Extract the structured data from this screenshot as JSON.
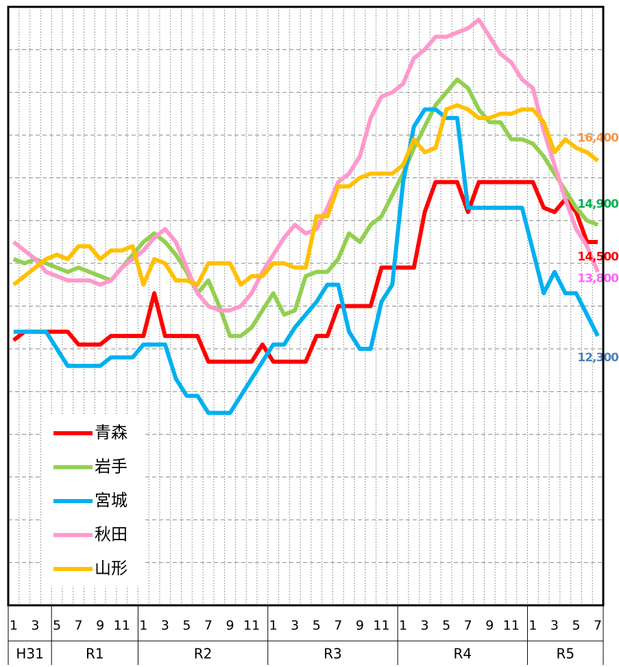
{
  "chart_data": {
    "type": "line",
    "categories": [
      "1",
      null,
      "3",
      null,
      "5",
      null,
      "7",
      null,
      "9",
      null,
      "11",
      null,
      "1",
      null,
      "3",
      null,
      "5",
      null,
      "7",
      null,
      "9",
      null,
      "11",
      null,
      "1",
      null,
      "3",
      null,
      "5",
      null,
      "7",
      null,
      "9",
      null,
      "11",
      null,
      "1",
      null,
      "3",
      null,
      "5",
      null,
      "7",
      null,
      "9",
      null,
      "11",
      null,
      "1",
      null,
      "3",
      null,
      "5",
      null,
      "7"
    ],
    "periods": [
      {
        "label": "H31",
        "months": 4
      },
      {
        "label": "R1",
        "months": 8
      },
      {
        "label": "R2",
        "months": 12
      },
      {
        "label": "R3",
        "months": 12
      },
      {
        "label": "R4",
        "months": 12
      },
      {
        "label": "R5",
        "months": 7
      }
    ],
    "ylim": [
      6000,
      20000
    ],
    "yticks": [
      7000,
      8000,
      9000,
      10000,
      11000,
      12000,
      13000,
      14000,
      15000,
      16000,
      17000,
      18000,
      19000
    ],
    "grid": true,
    "legend": "lower left",
    "series": [
      {
        "name": "青森",
        "color": "#ff0000",
        "label_color": "#ff0000",
        "values": [
          12200,
          12400,
          12400,
          12400,
          12400,
          12400,
          12100,
          12100,
          12100,
          12300,
          12300,
          12300,
          12300,
          13300,
          12300,
          12300,
          12300,
          12300,
          11700,
          11700,
          11700,
          11700,
          11700,
          12100,
          11700,
          11700,
          11700,
          11700,
          12300,
          12300,
          13000,
          13000,
          13000,
          13000,
          13900,
          13900,
          13900,
          13900,
          15200,
          15900,
          15900,
          15900,
          15200,
          15900,
          15900,
          15900,
          15900,
          15900,
          15900,
          15300,
          15200,
          15500,
          15200,
          14500,
          14500
        ],
        "value_labels": [
          null,
          null,
          null,
          null,
          null,
          null,
          null,
          null,
          null,
          null,
          null,
          null,
          null,
          null,
          null,
          null,
          null,
          null,
          null,
          null,
          null,
          null,
          null,
          null,
          null,
          null,
          null,
          null,
          null,
          null,
          null,
          null,
          null,
          null,
          null,
          null,
          null,
          null,
          null,
          null,
          null,
          null,
          null,
          null,
          null,
          null,
          null,
          null,
          null,
          null,
          null,
          null,
          null,
          null,
          "14,500"
        ]
      },
      {
        "name": "岩手",
        "color": "#92d050",
        "label_color": "#00b050",
        "values": [
          14100,
          14000,
          14100,
          14000,
          13900,
          13800,
          13900,
          13800,
          13700,
          13600,
          13900,
          14200,
          14500,
          14700,
          14500,
          14200,
          13800,
          13300,
          13600,
          13000,
          12300,
          12300,
          12500,
          12900,
          13300,
          12800,
          12900,
          13700,
          13800,
          13800,
          14100,
          14700,
          14500,
          14900,
          15100,
          15600,
          16100,
          16700,
          17200,
          17700,
          18000,
          18300,
          18100,
          17600,
          17300,
          17300,
          16900,
          16900,
          16800,
          16500,
          16100,
          15700,
          15300,
          15000,
          14900
        ],
        "value_labels": [
          null,
          null,
          null,
          null,
          null,
          null,
          null,
          null,
          null,
          null,
          null,
          null,
          null,
          null,
          null,
          null,
          null,
          null,
          null,
          null,
          null,
          null,
          null,
          null,
          null,
          null,
          null,
          null,
          null,
          null,
          null,
          null,
          null,
          null,
          null,
          null,
          null,
          null,
          null,
          null,
          null,
          null,
          null,
          null,
          null,
          null,
          null,
          null,
          null,
          null,
          null,
          null,
          null,
          null,
          "14,900"
        ]
      },
      {
        "name": "宮城",
        "color": "#00b0f0",
        "label_color": "#4f81bd",
        "values": [
          12400,
          12400,
          12400,
          12400,
          12000,
          11600,
          11600,
          11600,
          11600,
          11800,
          11800,
          11800,
          12100,
          12100,
          12100,
          11300,
          10900,
          10900,
          10500,
          10500,
          10500,
          10900,
          11300,
          11700,
          12100,
          12100,
          12500,
          12800,
          13100,
          13500,
          13500,
          12400,
          12000,
          12000,
          13100,
          13500,
          15900,
          17200,
          17600,
          17600,
          17400,
          17400,
          15300,
          15300,
          15300,
          15300,
          15300,
          15300,
          14300,
          13300,
          13800,
          13300,
          13300,
          12800,
          12300
        ],
        "value_labels": [
          null,
          null,
          null,
          null,
          null,
          null,
          null,
          null,
          null,
          null,
          null,
          null,
          null,
          null,
          null,
          null,
          null,
          null,
          null,
          null,
          null,
          null,
          null,
          null,
          null,
          null,
          null,
          null,
          null,
          null,
          null,
          null,
          null,
          null,
          null,
          null,
          null,
          null,
          null,
          null,
          null,
          null,
          null,
          null,
          null,
          null,
          null,
          null,
          null,
          null,
          null,
          null,
          null,
          null,
          "12,300"
        ]
      },
      {
        "name": "秋田",
        "color": "#ff99cc",
        "label_color": "#ff66ff",
        "values": [
          14500,
          14300,
          14100,
          13800,
          13700,
          13600,
          13600,
          13600,
          13500,
          13600,
          13900,
          14100,
          14300,
          14600,
          14800,
          14500,
          13900,
          13300,
          13000,
          12900,
          12900,
          13000,
          13300,
          13800,
          14200,
          14600,
          14900,
          14700,
          14800,
          15300,
          15900,
          16100,
          16500,
          17400,
          17900,
          18000,
          18200,
          18800,
          19000,
          19300,
          19300,
          19400,
          19500,
          19700,
          19300,
          18900,
          18700,
          18300,
          18100,
          17100,
          16300,
          15500,
          14800,
          14400,
          13800
        ],
        "value_labels": [
          null,
          null,
          null,
          null,
          null,
          null,
          null,
          null,
          null,
          null,
          null,
          null,
          null,
          null,
          null,
          null,
          null,
          null,
          null,
          null,
          null,
          null,
          null,
          null,
          null,
          null,
          null,
          null,
          null,
          null,
          null,
          null,
          null,
          null,
          null,
          null,
          null,
          null,
          null,
          null,
          null,
          null,
          null,
          null,
          null,
          null,
          null,
          null,
          null,
          null,
          null,
          null,
          null,
          null,
          "13,800"
        ]
      },
      {
        "name": "山形",
        "color": "#ffc000",
        "label_color": "#f79646",
        "values": [
          13500,
          13700,
          13900,
          14100,
          14200,
          14100,
          14400,
          14400,
          14100,
          14300,
          14300,
          14400,
          13500,
          14100,
          14000,
          13600,
          13600,
          13500,
          14000,
          14000,
          14000,
          13500,
          13700,
          13700,
          14000,
          14000,
          13900,
          13900,
          15100,
          15100,
          15800,
          15800,
          16000,
          16100,
          16100,
          16100,
          16300,
          16900,
          16600,
          16700,
          17600,
          17700,
          17600,
          17400,
          17400,
          17500,
          17500,
          17600,
          17600,
          17300,
          16600,
          16900,
          16700,
          16600,
          16400
        ],
        "value_labels": [
          null,
          null,
          null,
          null,
          null,
          null,
          null,
          null,
          null,
          null,
          null,
          null,
          null,
          null,
          null,
          null,
          null,
          null,
          null,
          null,
          null,
          null,
          null,
          null,
          null,
          null,
          null,
          null,
          null,
          null,
          null,
          null,
          null,
          null,
          null,
          null,
          null,
          null,
          null,
          null,
          null,
          null,
          null,
          null,
          null,
          null,
          null,
          null,
          null,
          null,
          null,
          null,
          null,
          null,
          "16,400"
        ]
      }
    ]
  }
}
